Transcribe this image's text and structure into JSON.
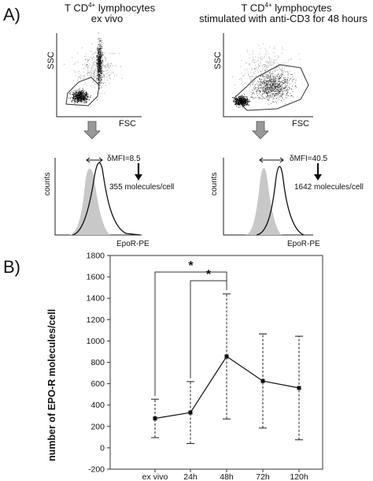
{
  "panelA": {
    "letter": "A)",
    "left": {
      "title_line1": "T CD",
      "title_sup": "4+",
      "title_rest": " lymphocytes",
      "title_line2": "ex vivo",
      "scatter_y": "SSC",
      "scatter_x": "FSC",
      "hist_y": "counts",
      "hist_x": "EpoR-PE",
      "dmfi": "δMFI=8.5",
      "molecules": "355 molecules/cell"
    },
    "right": {
      "title_line1": "T CD",
      "title_sup": "4+",
      "title_rest": " lymphocytes",
      "title_line2": "stimulated with anti-CD3 for 48 hours",
      "scatter_y": "SSC",
      "scatter_x": "FSC",
      "hist_y": "counts",
      "hist_x": "EpoR-PE",
      "dmfi": "δMFI=40.5",
      "molecules": "1642 molecules/cell"
    }
  },
  "panelB": {
    "letter": "B)",
    "sig1": "*",
    "sig2": "*"
  },
  "chart_data": {
    "type": "line",
    "categories": [
      "ex vivo",
      "24h",
      "48h",
      "72h",
      "120h"
    ],
    "values": [
      275,
      330,
      855,
      625,
      560
    ],
    "error_low": [
      95,
      40,
      270,
      185,
      75
    ],
    "error_high": [
      455,
      620,
      1440,
      1065,
      1045
    ],
    "ylabel": "number of EPO-R molecules/cell",
    "xlabel": "",
    "ylim": [
      -200,
      1800
    ],
    "yticks": [
      -200,
      0,
      200,
      400,
      600,
      800,
      1000,
      1200,
      1400,
      1600,
      1800
    ],
    "significance": [
      {
        "from": "ex vivo",
        "to": "48h",
        "label": "*"
      },
      {
        "from": "24h",
        "to": "48h",
        "label": "*"
      }
    ],
    "grid": false
  }
}
